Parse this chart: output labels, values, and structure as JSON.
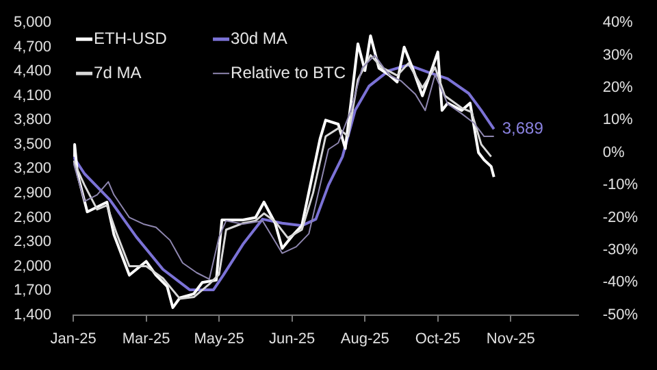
{
  "chart_data": {
    "type": "line",
    "legend": "top left",
    "grid": false,
    "xlim": [
      "2025-01-20",
      "2026-01-15"
    ],
    "xticks": [
      {
        "value": "2025-01-20",
        "label": "Jan-25"
      },
      {
        "value": "2025-03-13",
        "label": "Mar-25"
      },
      {
        "value": "2025-05-04",
        "label": "May-25"
      },
      {
        "value": "2025-06-25",
        "label": "Jun-25"
      },
      {
        "value": "2025-08-16",
        "label": "Aug-25"
      },
      {
        "value": "2025-10-07",
        "label": "Oct-25"
      },
      {
        "value": "2025-11-28",
        "label": "Nov-25"
      }
    ],
    "ylim": [
      1400,
      5000
    ],
    "yticks": [
      {
        "value": 1400,
        "label": "1,400"
      },
      {
        "value": 1700,
        "label": "1,700"
      },
      {
        "value": 2000,
        "label": "2,000"
      },
      {
        "value": 2300,
        "label": "2,300"
      },
      {
        "value": 2600,
        "label": "2,600"
      },
      {
        "value": 2900,
        "label": "2,900"
      },
      {
        "value": 3200,
        "label": "3,200"
      },
      {
        "value": 3500,
        "label": "3,500"
      },
      {
        "value": 3800,
        "label": "3,800"
      },
      {
        "value": 4100,
        "label": "4,100"
      },
      {
        "value": 4400,
        "label": "4,400"
      },
      {
        "value": 4700,
        "label": "4,700"
      },
      {
        "value": 5000,
        "label": "5,000"
      }
    ],
    "y2lim": [
      -50,
      40
    ],
    "y2ticks": [
      {
        "value": -50,
        "label": "-50%"
      },
      {
        "value": -40,
        "label": "-40%"
      },
      {
        "value": -30,
        "label": "-30%"
      },
      {
        "value": -20,
        "label": "-20%"
      },
      {
        "value": -10,
        "label": "-10%"
      },
      {
        "value": 0,
        "label": "0%"
      },
      {
        "value": 10,
        "label": "10%"
      },
      {
        "value": 20,
        "label": "20%"
      },
      {
        "value": 30,
        "label": "30%"
      },
      {
        "value": 40,
        "label": "40%"
      }
    ],
    "annotations": [
      {
        "text": "3,689",
        "x": "2025-11-16",
        "y": 3689
      }
    ],
    "series": [
      {
        "name": "Relative to BTC",
        "color": "#8f87b0",
        "axis": "y2",
        "x": [
          "2025-01-20",
          "2025-01-28",
          "2025-02-06",
          "2025-02-14",
          "2025-02-18",
          "2025-03-01",
          "2025-03-11",
          "2025-03-20",
          "2025-03-30",
          "2025-04-08",
          "2025-04-18",
          "2025-04-27",
          "2025-05-04",
          "2025-05-09",
          "2025-05-21",
          "2025-06-04",
          "2025-06-18",
          "2025-06-28",
          "2025-07-07",
          "2025-07-21",
          "2025-07-28",
          "2025-08-06",
          "2025-08-14",
          "2025-08-23",
          "2025-09-02",
          "2025-09-11",
          "2025-09-21",
          "2025-09-28",
          "2025-10-05",
          "2025-10-14",
          "2025-10-24",
          "2025-11-02",
          "2025-11-09",
          "2025-11-16"
        ],
        "values": [
          -3,
          -15,
          -13,
          -9,
          -13,
          -20,
          -22,
          -23,
          -27,
          -34,
          -37,
          -39,
          -26,
          -21,
          -22,
          -21,
          -31,
          -29,
          -25,
          1,
          3,
          13,
          26,
          30,
          24,
          22,
          18,
          13,
          24,
          15,
          12,
          9,
          5,
          5
        ]
      },
      {
        "name": "7d MA",
        "color": "#d9d9d9",
        "x": [
          "2025-01-20",
          "2025-01-28",
          "2025-02-06",
          "2025-02-13",
          "2025-02-20",
          "2025-03-01",
          "2025-03-13",
          "2025-03-25",
          "2025-04-06",
          "2025-04-16",
          "2025-04-27",
          "2025-05-04",
          "2025-05-09",
          "2025-05-21",
          "2025-05-30",
          "2025-06-05",
          "2025-06-13",
          "2025-06-22",
          "2025-07-02",
          "2025-07-10",
          "2025-07-19",
          "2025-07-28",
          "2025-08-04",
          "2025-08-11",
          "2025-08-20",
          "2025-08-28",
          "2025-09-08",
          "2025-09-16",
          "2025-09-26",
          "2025-10-05",
          "2025-10-12",
          "2025-10-24",
          "2025-10-31",
          "2025-11-07",
          "2025-11-14"
        ],
        "values": [
          3300,
          3000,
          2700,
          2750,
          2400,
          2000,
          2000,
          1850,
          1600,
          1620,
          1780,
          1900,
          2450,
          2530,
          2560,
          2650,
          2550,
          2350,
          2450,
          2900,
          3600,
          3700,
          3600,
          4300,
          4600,
          4450,
          4350,
          4500,
          4200,
          4450,
          4100,
          3950,
          3900,
          3500,
          3350
        ]
      },
      {
        "name": "ETH-USD",
        "color": "#ffffff",
        "x": [
          "2025-01-20",
          "2025-01-21",
          "2025-01-23",
          "2025-01-30",
          "2025-02-13",
          "2025-02-18",
          "2025-03-01",
          "2025-03-13",
          "2025-03-20",
          "2025-03-28",
          "2025-04-01",
          "2025-04-06",
          "2025-04-16",
          "2025-04-22",
          "2025-05-02",
          "2025-05-06",
          "2025-05-11",
          "2025-05-21",
          "2025-05-30",
          "2025-06-05",
          "2025-06-13",
          "2025-06-18",
          "2025-06-26",
          "2025-07-02",
          "2025-07-07",
          "2025-07-15",
          "2025-07-19",
          "2025-07-28",
          "2025-08-02",
          "2025-08-06",
          "2025-08-11",
          "2025-08-16",
          "2025-08-20",
          "2025-08-26",
          "2025-09-02",
          "2025-09-08",
          "2025-09-13",
          "2025-09-19",
          "2025-09-26",
          "2025-10-03",
          "2025-10-07",
          "2025-10-10",
          "2025-10-14",
          "2025-10-24",
          "2025-10-30",
          "2025-11-05",
          "2025-11-09",
          "2025-11-14",
          "2025-11-16"
        ],
        "values": [
          3350,
          3500,
          3140,
          2670,
          2790,
          2390,
          1890,
          2060,
          1890,
          1750,
          1490,
          1610,
          1660,
          1800,
          1830,
          2570,
          2570,
          2570,
          2600,
          2790,
          2530,
          2220,
          2390,
          2500,
          2910,
          3570,
          3800,
          3750,
          3450,
          4010,
          4740,
          4410,
          4840,
          4440,
          4360,
          4270,
          4700,
          4440,
          4100,
          4440,
          4640,
          3920,
          4010,
          3920,
          4010,
          3400,
          3310,
          3230,
          3100
        ]
      },
      {
        "name": "30d MA",
        "color": "#7b72d6",
        "x": [
          "2025-01-20",
          "2025-01-28",
          "2025-02-15",
          "2025-03-06",
          "2025-03-25",
          "2025-04-13",
          "2025-04-30",
          "2025-05-07",
          "2025-05-21",
          "2025-06-04",
          "2025-06-18",
          "2025-07-02",
          "2025-07-12",
          "2025-07-21",
          "2025-07-31",
          "2025-08-09",
          "2025-08-19",
          "2025-09-02",
          "2025-09-16",
          "2025-09-30",
          "2025-10-14",
          "2025-10-29",
          "2025-11-07",
          "2025-11-16"
        ],
        "values": [
          3350,
          3140,
          2820,
          2360,
          1960,
          1710,
          1710,
          1890,
          2270,
          2580,
          2530,
          2500,
          2580,
          3000,
          3350,
          3920,
          4220,
          4410,
          4480,
          4390,
          4310,
          4130,
          3920,
          3689
        ]
      }
    ]
  }
}
